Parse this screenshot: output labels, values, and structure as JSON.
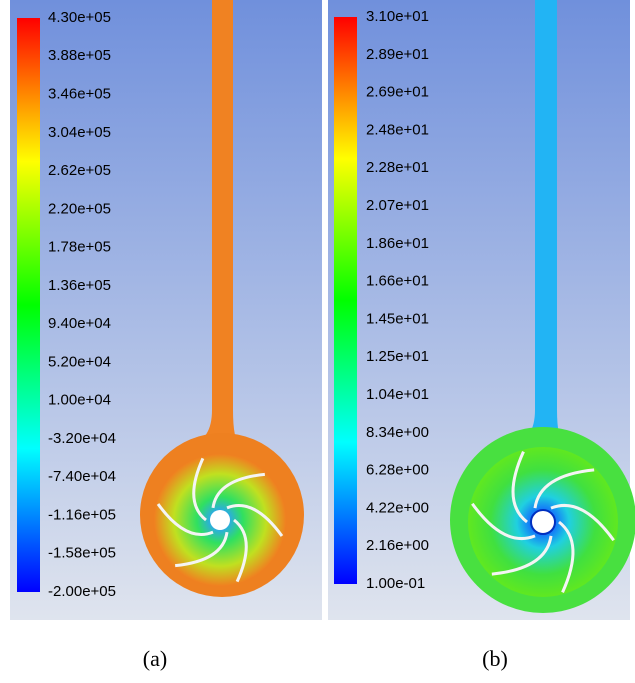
{
  "panels": [
    {
      "labels": [
        "4.30e+05",
        "3.88e+05",
        "3.46e+05",
        "3.04e+05",
        "2.62e+05",
        "2.20e+05",
        "1.78e+05",
        "1.36e+05",
        "9.40e+04",
        "5.20e+04",
        "1.00e+04",
        "-3.20e+04",
        "-7.40e+04",
        "-1.16e+05",
        "-1.58e+05",
        "-2.00e+05"
      ],
      "caption": "(a)"
    },
    {
      "labels": [
        "3.10e+01",
        "2.89e+01",
        "2.69e+01",
        "2.48e+01",
        "2.28e+01",
        "2.07e+01",
        "1.86e+01",
        "1.66e+01",
        "1.45e+01",
        "1.25e+01",
        "1.04e+01",
        "8.34e+00",
        "6.28e+00",
        "4.22e+00",
        "2.16e+00",
        "1.00e-01"
      ],
      "caption": "(b)"
    }
  ]
}
